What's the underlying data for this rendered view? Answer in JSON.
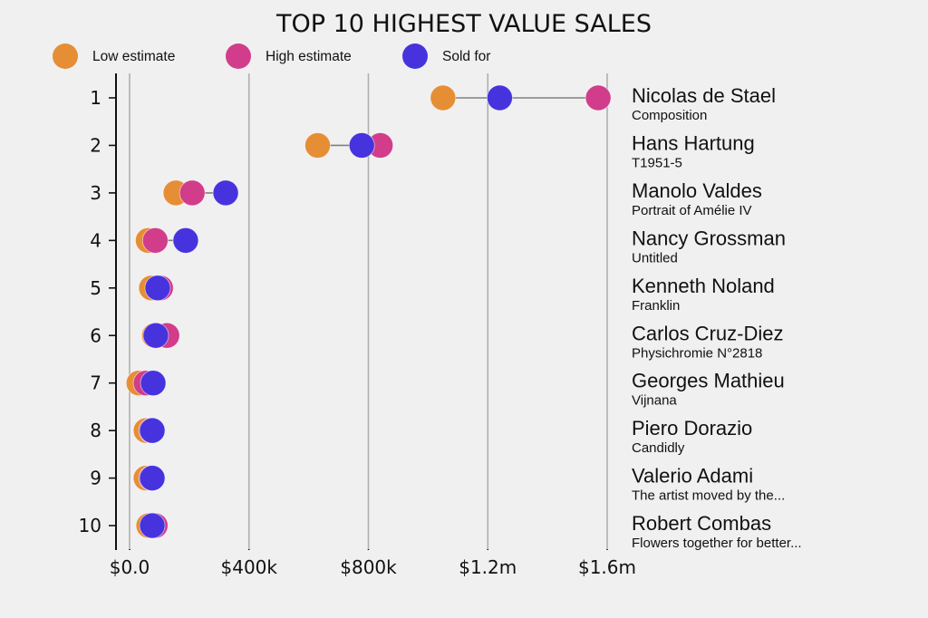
{
  "chart_data": {
    "type": "scatter",
    "subtype": "dot-plot",
    "title": "TOP 10 HIGHEST VALUE SALES",
    "xlabel": "",
    "ylabel": "",
    "xlim": [
      0,
      1600000
    ],
    "grid": true,
    "legend_position": "top-left",
    "x_ticks": [
      {
        "value": 0,
        "label": "$0.0"
      },
      {
        "value": 400000,
        "label": "$400k"
      },
      {
        "value": 800000,
        "label": "$800k"
      },
      {
        "value": 1200000,
        "label": "$1.2m"
      },
      {
        "value": 1600000,
        "label": "$1.6m"
      }
    ],
    "series": [
      {
        "key": "low",
        "name": "Low estimate",
        "color": "#E68E35"
      },
      {
        "key": "high",
        "name": "High estimate",
        "color": "#D13D8A"
      },
      {
        "key": "sold",
        "name": "Sold for",
        "color": "#4733DD"
      }
    ],
    "rows": [
      {
        "rank": "1",
        "artist": "Nicolas de Stael",
        "work": "Composition",
        "low": 1050000,
        "high": 1570000,
        "sold": 1240000
      },
      {
        "rank": "2",
        "artist": "Hans Hartung",
        "work": "T1951-5",
        "low": 630000,
        "high": 840000,
        "sold": 778000
      },
      {
        "rank": "3",
        "artist": "Manolo Valdes",
        "work": "Portrait of Amélie IV",
        "low": 155000,
        "high": 210000,
        "sold": 322000
      },
      {
        "rank": "4",
        "artist": "Nancy Grossman",
        "work": "Untitled",
        "low": 62000,
        "high": 86000,
        "sold": 188000
      },
      {
        "rank": "5",
        "artist": "Kenneth Noland",
        "work": "Franklin",
        "low": 73000,
        "high": 104000,
        "sold": 94000
      },
      {
        "rank": "6",
        "artist": "Carlos Cruz-Diez",
        "work": "Physichromie N°2818",
        "low": 83000,
        "high": 125000,
        "sold": 88000
      },
      {
        "rank": "7",
        "artist": "Georges Mathieu",
        "work": "Vijnana",
        "low": 31000,
        "high": 55000,
        "sold": 79000
      },
      {
        "rank": "8",
        "artist": "Piero Dorazio",
        "work": "Candidly",
        "low": 55000,
        "high": 73000,
        "sold": 76000
      },
      {
        "rank": "9",
        "artist": "Valerio Adami",
        "work": "The artist moved by the...",
        "low": 55000,
        "high": 73000,
        "sold": 76000
      },
      {
        "rank": "10",
        "artist": "Robert Combas",
        "work": "Flowers together for better...",
        "low": 64000,
        "high": 86000,
        "sold": 76000
      }
    ]
  }
}
